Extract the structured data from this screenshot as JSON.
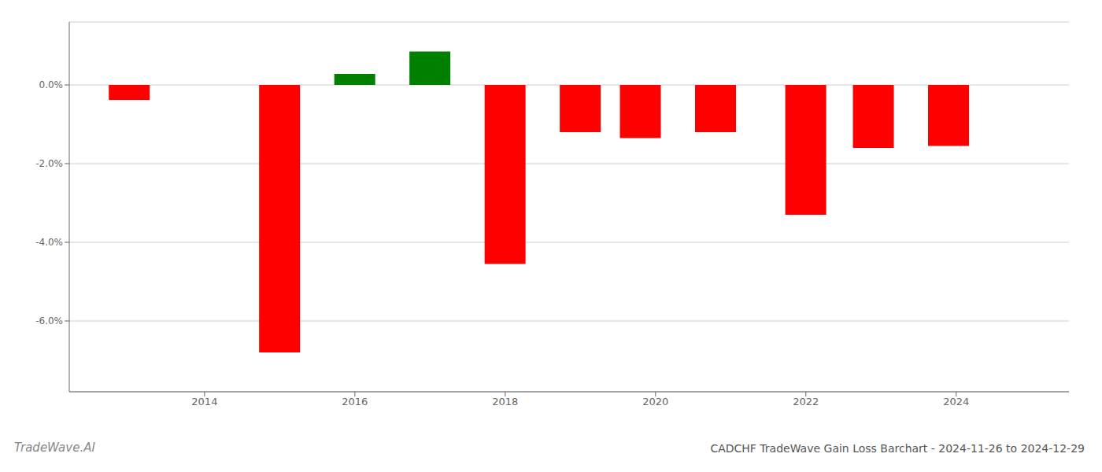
{
  "chart_data": {
    "type": "bar",
    "title": "CADCHF TradeWave Gain Loss Barchart - 2024-11-26 to 2024-12-29",
    "annotations": [
      "TradeWave.AI"
    ],
    "x": [
      2013,
      2015,
      2016,
      2017,
      2018,
      2019,
      2019.8,
      2020.8,
      2022,
      2022.9,
      2023.9
    ],
    "values": [
      -0.0038,
      -0.068,
      0.0028,
      0.0085,
      -0.0455,
      -0.012,
      -0.0135,
      -0.012,
      -0.033,
      -0.016,
      -0.0155
    ],
    "colors": [
      "#ff0000",
      "#ff0000",
      "#008000",
      "#008000",
      "#ff0000",
      "#ff0000",
      "#ff0000",
      "#ff0000",
      "#ff0000",
      "#ff0000",
      "#ff0000"
    ],
    "xlim": [
      2012.2,
      2025.5
    ],
    "xticks": [
      2014,
      2016,
      2018,
      2020,
      2022,
      2024
    ],
    "ylim": [
      -0.078,
      0.016
    ],
    "yticks": [
      {
        "value": 0.0,
        "label": "0.0%"
      },
      {
        "value": -0.02,
        "label": "-2.0%"
      },
      {
        "value": -0.04,
        "label": "-4.0%"
      },
      {
        "value": -0.06,
        "label": "-6.0%"
      }
    ],
    "grid": true
  }
}
